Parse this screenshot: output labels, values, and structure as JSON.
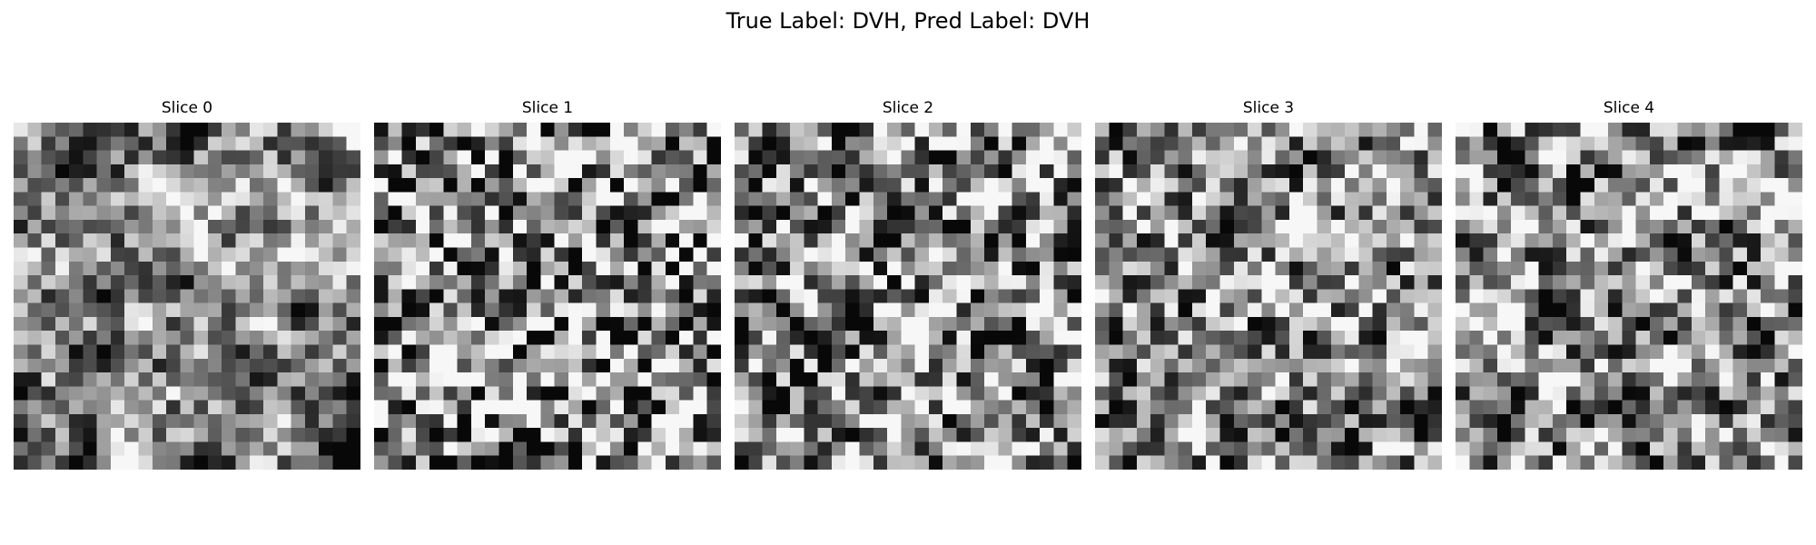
{
  "figure": {
    "suptitle": "True Label: DVH, Pred Label: DVH",
    "true_label": "DVH",
    "pred_label": "DVH",
    "colormap": "gray"
  },
  "slices": [
    {
      "title": "Slice 0",
      "grid": 25,
      "seed": 11,
      "smooth": 0.6,
      "contrast": 1.15,
      "dark_spots": 5
    },
    {
      "title": "Slice 1",
      "grid": 25,
      "seed": 23,
      "smooth": 0.15,
      "contrast": 1.0,
      "dark_spots": 1
    },
    {
      "title": "Slice 2",
      "grid": 25,
      "seed": 37,
      "smooth": 0.35,
      "contrast": 1.05,
      "dark_spots": 3
    },
    {
      "title": "Slice 3",
      "grid": 25,
      "seed": 41,
      "smooth": 0.45,
      "contrast": 1.1,
      "dark_spots": 4
    },
    {
      "title": "Slice 4",
      "grid": 25,
      "seed": 41,
      "smooth": 0.45,
      "contrast": 1.12,
      "dark_spots": 4
    }
  ]
}
